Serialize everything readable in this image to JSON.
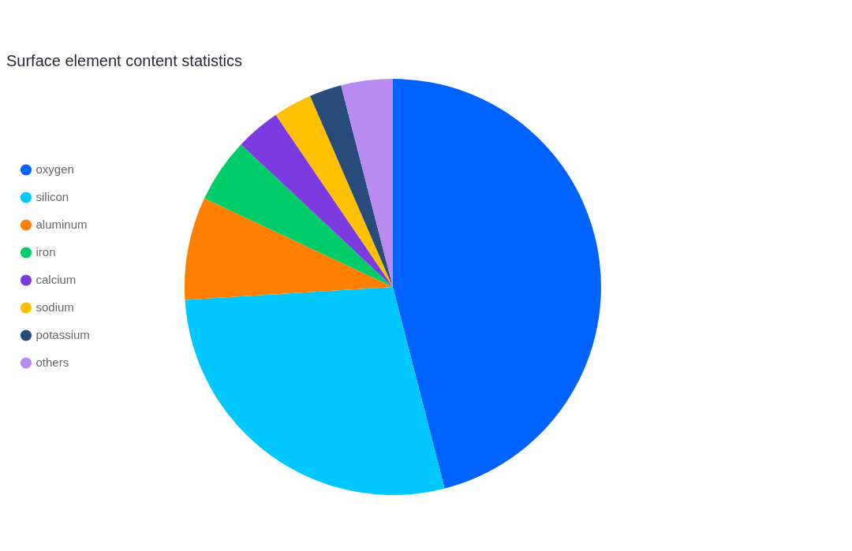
{
  "chart_data": {
    "type": "pie",
    "title": "Surface element content statistics",
    "categories": [
      "oxygen",
      "silicon",
      "aluminum",
      "iron",
      "calcium",
      "sodium",
      "potassium",
      "others"
    ],
    "values": [
      46,
      28,
      8,
      5,
      3.5,
      3,
      2.5,
      4
    ],
    "colors": [
      "#0062ff",
      "#00c8ff",
      "#ff8000",
      "#00cc6a",
      "#7c3ae0",
      "#ffc000",
      "#284c7a",
      "#b98af0"
    ],
    "legend": "left"
  }
}
